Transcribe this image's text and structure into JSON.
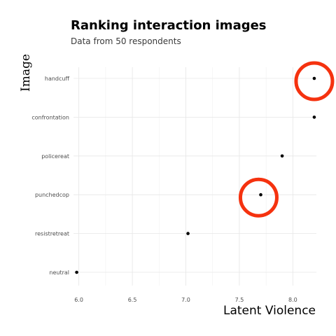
{
  "chart_data": {
    "type": "scatter",
    "title": "Ranking interaction images",
    "subtitle": "Data from 50 respondents",
    "xlabel": "Latent Violence",
    "ylabel": "Image",
    "xlim": [
      5.95,
      8.22
    ],
    "x_ticks": [
      6.0,
      6.5,
      7.0,
      7.5,
      8.0
    ],
    "x_tick_labels": [
      "6.0",
      "6.5",
      "7.0",
      "7.5",
      "8.0"
    ],
    "categories": [
      "handcuff",
      "confrontation",
      "policereat",
      "punchedcop",
      "resistretreat",
      "neutral"
    ],
    "points": [
      {
        "label": "handcuff",
        "x": 8.2
      },
      {
        "label": "confrontation",
        "x": 8.2
      },
      {
        "label": "policereat",
        "x": 7.9
      },
      {
        "label": "punchedcop",
        "x": 7.7
      },
      {
        "label": "resistretreat",
        "x": 7.02
      },
      {
        "label": "neutral",
        "x": 5.98
      }
    ],
    "highlights": [
      {
        "label": "handcuff",
        "x": 8.2
      },
      {
        "label": "punchedcop",
        "x": 7.68
      }
    ],
    "highlight_color": "#f5320f",
    "grid": true,
    "legend": "none"
  }
}
